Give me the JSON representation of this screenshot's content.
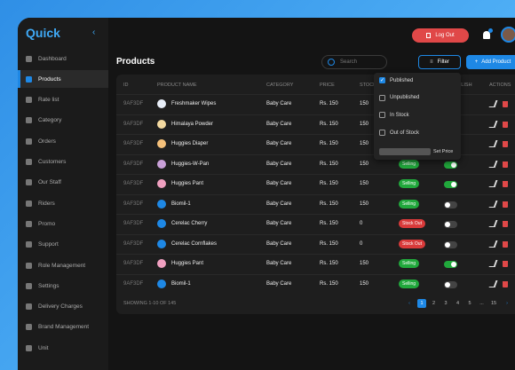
{
  "app": {
    "logo": "Quick",
    "logout": "Log Out"
  },
  "sidebar": {
    "items": [
      "Dashboard",
      "Products",
      "Rate list",
      "Category",
      "Orders",
      "Customers",
      "Our Staff",
      "Riders",
      "Promo",
      "Support",
      "Role Management",
      "Settings",
      "Delivery Charges",
      "Brand Management",
      "Unit"
    ],
    "active": 1
  },
  "page": {
    "title": "Products",
    "search": "Search",
    "filter": "Filter",
    "add": "Add Product"
  },
  "table": {
    "columns": [
      "ID",
      "PRODUCT NAME",
      "CATEGORY",
      "PRICE",
      "STOCK",
      "PUBLISH",
      "ACTIONS"
    ],
    "rows": [
      {
        "id": "9AF3DF",
        "name": "Freshmaker Wipes",
        "category": "Baby Care",
        "price": "Rs. 150",
        "stock": "150"
      },
      {
        "id": "9AF3DF",
        "name": "Himalaya Powder",
        "category": "Baby Care",
        "price": "Rs. 150",
        "stock": "150"
      },
      {
        "id": "9AF3DF",
        "name": "Huggies Diaper",
        "category": "Baby Care",
        "price": "Rs. 150",
        "stock": "150"
      },
      {
        "id": "9AF3DF",
        "name": "Huggies-W-Pan",
        "category": "Baby Care",
        "price": "Rs. 150",
        "stock": "150",
        "status": "Selling",
        "published": true
      },
      {
        "id": "9AF3DF",
        "name": "Huggies Pant",
        "category": "Baby Care",
        "price": "Rs. 150",
        "stock": "150",
        "status": "Selling",
        "published": true
      },
      {
        "id": "9AF3DF",
        "name": "Biomil-1",
        "category": "Baby Care",
        "price": "Rs. 150",
        "stock": "150",
        "status": "Selling",
        "published": false
      },
      {
        "id": "9AF3DF",
        "name": "Cerelac Cherry",
        "category": "Baby Care",
        "price": "Rs. 150",
        "stock": "0",
        "status": "Stock Out",
        "published": false
      },
      {
        "id": "9AF3DF",
        "name": "Cerelac Cornflakes",
        "category": "Baby Care",
        "price": "Rs. 150",
        "stock": "0",
        "status": "Stock Out",
        "published": false
      },
      {
        "id": "9AF3DF",
        "name": "Huggies Pant",
        "category": "Baby Care",
        "price": "Rs. 150",
        "stock": "150",
        "status": "Selling",
        "published": true
      },
      {
        "id": "9AF3DF",
        "name": "Biomil-1",
        "category": "Baby Care",
        "price": "Rs. 150",
        "stock": "150",
        "status": "Selling",
        "published": false
      }
    ]
  },
  "filter_menu": {
    "options": [
      {
        "label": "Published",
        "checked": true
      },
      {
        "label": "Unpublished",
        "checked": false
      },
      {
        "label": "In Stock",
        "checked": false
      },
      {
        "label": "Out of Stock",
        "checked": false
      }
    ],
    "set_price": "Set Price"
  },
  "footer": {
    "showing": "SHOWING 1-10 OF 145",
    "pages": [
      "1",
      "2",
      "3",
      "4",
      "5",
      "...",
      "15"
    ],
    "current": 0
  }
}
